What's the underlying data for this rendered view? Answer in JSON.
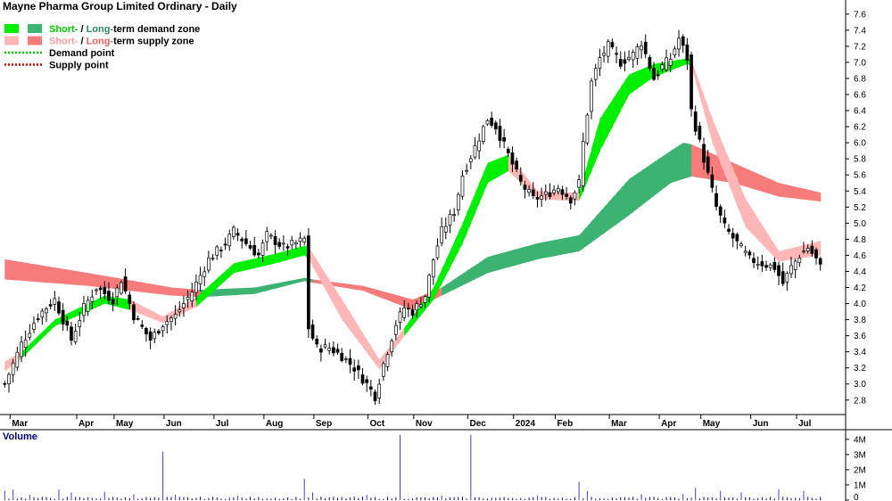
{
  "chart_data": {
    "type": "candlestick",
    "title": "Mayne Pharma Group Limited Ordinary - Daily",
    "legend": [
      {
        "swatches": [
          "#00ee00",
          "#3cb371"
        ],
        "parts": [
          "Short-",
          " / ",
          "Long-",
          "term demand zone"
        ],
        "colors": [
          "#00cc00",
          "#000000",
          "#2e8b57",
          "#000000"
        ]
      },
      {
        "swatches": [
          "#ffb6b6",
          "#f77b7b"
        ],
        "parts": [
          "Short-",
          " / ",
          "Long-",
          "term supply zone"
        ],
        "colors": [
          "#ff9a9a",
          "#000000",
          "#f06060",
          "#000000"
        ]
      },
      {
        "dotted": "#00cc00",
        "parts": [
          "Demand point"
        ],
        "colors": [
          "#000000"
        ]
      },
      {
        "dotted": "#dd0000",
        "parts": [
          "Supply point"
        ],
        "colors": [
          "#000000"
        ]
      }
    ],
    "x_labels": [
      "Mar",
      "Apr",
      "May",
      "Jun",
      "Jul",
      "Aug",
      "Sep",
      "Oct",
      "Nov",
      "Dec",
      "2024",
      "Feb",
      "Mar",
      "Apr",
      "May",
      "Jun",
      "Jul"
    ],
    "y_ticks": [
      2.8,
      3.0,
      3.2,
      3.4,
      3.6,
      3.8,
      4.0,
      4.2,
      4.4,
      4.6,
      4.8,
      5.0,
      5.2,
      5.4,
      5.6,
      5.8,
      6.0,
      6.2,
      6.4,
      6.6,
      6.8,
      7.0,
      7.2,
      7.4,
      7.6
    ],
    "y_tick_labels": [
      "2.8",
      "3.0",
      "3.2",
      "3.4",
      "3.6",
      "3.8",
      "4.0",
      "4.2",
      "4.4",
      "4.6",
      "4.8",
      "5.0",
      "5.2",
      "5.4",
      "5.6",
      "5.8",
      "6.0",
      "6.2",
      "6.4",
      "6.6",
      "6.8",
      "7.0",
      "7.2",
      "7.4",
      "7.6"
    ],
    "ylim": [
      2.62,
      7.72
    ],
    "price_path": [
      [
        0,
        3.0
      ],
      [
        4,
        3.5
      ],
      [
        8,
        3.85
      ],
      [
        12,
        4.05
      ],
      [
        16,
        3.55
      ],
      [
        19,
        3.95
      ],
      [
        22,
        4.2
      ],
      [
        26,
        4.05
      ],
      [
        28,
        4.3
      ],
      [
        31,
        3.85
      ],
      [
        35,
        3.55
      ],
      [
        38,
        3.75
      ],
      [
        41,
        3.85
      ],
      [
        45,
        4.15
      ],
      [
        49,
        4.55
      ],
      [
        53,
        4.75
      ],
      [
        55,
        4.9
      ],
      [
        58,
        4.75
      ],
      [
        61,
        4.6
      ],
      [
        63,
        4.85
      ],
      [
        67,
        4.7
      ],
      [
        70,
        4.75
      ],
      [
        72,
        4.8
      ],
      [
        73,
        3.7
      ],
      [
        75,
        3.45
      ],
      [
        78,
        3.45
      ],
      [
        81,
        3.35
      ],
      [
        84,
        3.2
      ],
      [
        87,
        3.0
      ],
      [
        89,
        2.85
      ],
      [
        91,
        3.25
      ],
      [
        94,
        3.75
      ],
      [
        96,
        3.95
      ],
      [
        98,
        3.9
      ],
      [
        101,
        4.1
      ],
      [
        103,
        4.55
      ],
      [
        105,
        4.9
      ],
      [
        108,
        5.15
      ],
      [
        110,
        5.6
      ],
      [
        113,
        5.95
      ],
      [
        116,
        6.3
      ],
      [
        118,
        6.2
      ],
      [
        121,
        5.85
      ],
      [
        124,
        5.5
      ],
      [
        127,
        5.3
      ],
      [
        130,
        5.35
      ],
      [
        133,
        5.45
      ],
      [
        136,
        5.3
      ],
      [
        138,
        5.5
      ],
      [
        139,
        6.0
      ],
      [
        141,
        6.75
      ],
      [
        143,
        7.05
      ],
      [
        145,
        7.2
      ],
      [
        148,
        7.0
      ],
      [
        151,
        7.1
      ],
      [
        153,
        7.25
      ],
      [
        156,
        6.8
      ],
      [
        158,
        6.95
      ],
      [
        160,
        7.05
      ],
      [
        162,
        7.3
      ],
      [
        164,
        7.05
      ],
      [
        165,
        6.4
      ],
      [
        167,
        6.0
      ],
      [
        169,
        5.6
      ],
      [
        171,
        5.2
      ],
      [
        173,
        4.95
      ],
      [
        176,
        4.75
      ],
      [
        179,
        4.55
      ],
      [
        182,
        4.5
      ],
      [
        185,
        4.45
      ],
      [
        187,
        4.25
      ],
      [
        189,
        4.45
      ],
      [
        191,
        4.6
      ],
      [
        193,
        4.7
      ],
      [
        195,
        4.55
      ],
      [
        196,
        4.45
      ]
    ],
    "total_bars": 197,
    "short_term_zone": [
      [
        0,
        3.28,
        3.16,
        "supply"
      ],
      [
        4,
        3.4,
        3.32,
        "demand"
      ],
      [
        12,
        3.8,
        3.72,
        "demand"
      ],
      [
        24,
        4.1,
        4.0,
        "demand"
      ],
      [
        30,
        4.05,
        3.92,
        "supply"
      ],
      [
        38,
        3.84,
        3.76,
        "supply"
      ],
      [
        46,
        4.08,
        3.96,
        "demand"
      ],
      [
        55,
        4.5,
        4.38,
        "demand"
      ],
      [
        65,
        4.62,
        4.5,
        "demand"
      ],
      [
        72,
        4.72,
        4.6,
        "demand"
      ],
      [
        73,
        4.7,
        4.55,
        "supply"
      ],
      [
        81,
        4.05,
        3.8,
        "supply"
      ],
      [
        90,
        3.3,
        3.18,
        "supply"
      ],
      [
        96,
        3.7,
        3.6,
        "demand"
      ],
      [
        103,
        4.2,
        4.05,
        "demand"
      ],
      [
        110,
        5.0,
        4.75,
        "demand"
      ],
      [
        116,
        5.75,
        5.5,
        "demand"
      ],
      [
        121,
        5.85,
        5.65,
        "supply"
      ],
      [
        128,
        5.4,
        5.3,
        "supply"
      ],
      [
        135,
        5.38,
        5.28,
        "supply"
      ],
      [
        138,
        5.38,
        5.28,
        "demand"
      ],
      [
        143,
        6.3,
        5.9,
        "demand"
      ],
      [
        150,
        6.85,
        6.6,
        "demand"
      ],
      [
        156,
        6.98,
        6.82,
        "demand"
      ],
      [
        164,
        7.05,
        6.98,
        "demand"
      ],
      [
        165,
        7.02,
        6.95,
        "supply"
      ],
      [
        170,
        6.3,
        6.0,
        "supply"
      ],
      [
        178,
        5.3,
        4.95,
        "supply"
      ],
      [
        186,
        4.65,
        4.52,
        "supply"
      ],
      [
        196,
        4.78,
        4.6,
        "supply"
      ]
    ],
    "long_term_zone": [
      [
        0,
        4.55,
        4.3,
        "supply"
      ],
      [
        20,
        4.38,
        4.22,
        "supply"
      ],
      [
        40,
        4.2,
        4.1,
        "supply"
      ],
      [
        47,
        4.17,
        4.08,
        "demand"
      ],
      [
        60,
        4.2,
        4.12,
        "demand"
      ],
      [
        72,
        4.32,
        4.28,
        "demand"
      ],
      [
        74,
        4.3,
        4.26,
        "supply"
      ],
      [
        86,
        4.22,
        4.16,
        "supply"
      ],
      [
        98,
        4.05,
        3.92,
        "supply"
      ],
      [
        105,
        4.2,
        4.1,
        "demand"
      ],
      [
        116,
        4.58,
        4.38,
        "demand"
      ],
      [
        128,
        4.75,
        4.55,
        "demand"
      ],
      [
        138,
        4.85,
        4.65,
        "demand"
      ],
      [
        150,
        5.55,
        5.1,
        "demand"
      ],
      [
        160,
        5.9,
        5.5,
        "demand"
      ],
      [
        163,
        6.0,
        5.55,
        "demand"
      ],
      [
        165,
        5.98,
        5.58,
        "supply"
      ],
      [
        175,
        5.75,
        5.5,
        "supply"
      ],
      [
        186,
        5.5,
        5.33,
        "supply"
      ],
      [
        196,
        5.38,
        5.27,
        "supply"
      ]
    ],
    "volume": {
      "title": "Volume",
      "y_tick_labels": [
        "4M",
        "3M",
        "2M",
        "1M",
        "0"
      ],
      "y_ticks": [
        4,
        3,
        2,
        1,
        0
      ],
      "ylim": [
        0,
        4.4
      ],
      "spikes": [
        [
          0,
          0.6
        ],
        [
          2,
          0.7
        ],
        [
          6,
          0.35
        ],
        [
          13,
          0.7
        ],
        [
          16,
          0.5
        ],
        [
          24,
          0.55
        ],
        [
          31,
          0.4
        ],
        [
          38,
          3.2
        ],
        [
          41,
          0.35
        ],
        [
          56,
          0.3
        ],
        [
          72,
          1.4
        ],
        [
          74,
          0.5
        ],
        [
          87,
          0.35
        ],
        [
          95,
          4.3
        ],
        [
          105,
          0.3
        ],
        [
          112,
          4.3
        ],
        [
          128,
          0.3
        ],
        [
          138,
          1.2
        ],
        [
          140,
          0.6
        ],
        [
          153,
          0.4
        ],
        [
          163,
          0.4
        ],
        [
          166,
          0.8
        ],
        [
          172,
          0.6
        ],
        [
          177,
          0.5
        ],
        [
          186,
          0.7
        ],
        [
          192,
          0.6
        ]
      ],
      "baseline": 0.15
    },
    "colors": {
      "short_demand": "#00ee00",
      "long_demand": "#3cb371",
      "short_supply": "#ffb6b6",
      "long_supply": "#f77b7b",
      "candle": "#000000",
      "volume_bar": "#000080",
      "volume_spike": "#4040c0"
    }
  }
}
